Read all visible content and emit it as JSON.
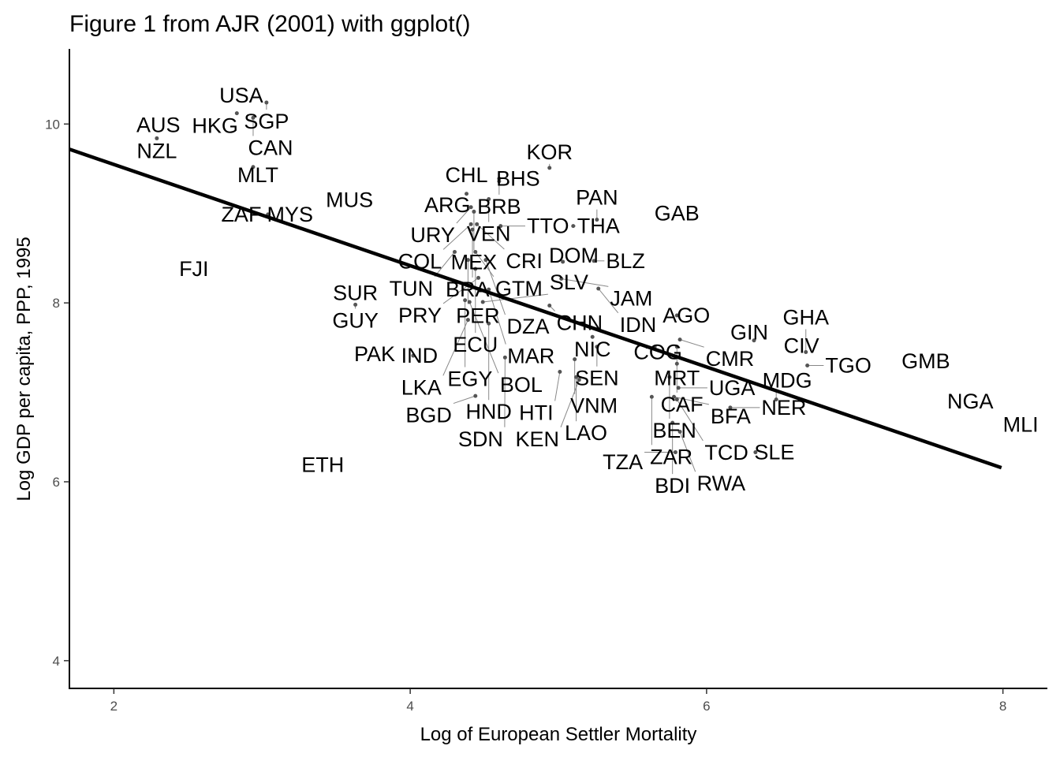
{
  "chart_data": {
    "type": "scatter",
    "title": "Figure 1 from AJR (2001) with ggplot()",
    "xlabel": "Log of European Settler Mortality",
    "ylabel": "Log GDP per capita, PPP, 1995",
    "xlim": [
      1.7,
      8.3
    ],
    "ylim": [
      3.69,
      10.84
    ],
    "xticks": [
      2,
      4,
      6,
      8
    ],
    "yticks": [
      4,
      6,
      8,
      10
    ],
    "grid": false,
    "marker": "text-label",
    "fit_line": {
      "intercept": 10.68,
      "slope": -0.566,
      "x_from": 1.7,
      "x_to": 7.99,
      "color": "#000000"
    },
    "points": [
      {
        "label": "USA",
        "x": 2.86,
        "y": 10.32
      },
      {
        "label": "SGP",
        "x": 3.03,
        "y": 10.24
      },
      {
        "label": "HKG",
        "x": 2.83,
        "y": 10.12
      },
      {
        "label": "CAN",
        "x": 2.94,
        "y": 10.07
      },
      {
        "label": "AUS",
        "x": 2.3,
        "y": 9.99
      },
      {
        "label": "NZL",
        "x": 2.29,
        "y": 9.84
      },
      {
        "label": "MLT",
        "x": 2.94,
        "y": 9.52
      },
      {
        "label": "MUS",
        "x": 3.59,
        "y": 9.15
      },
      {
        "label": "ZAF",
        "x": 2.86,
        "y": 8.99
      },
      {
        "label": "MYS",
        "x": 3.04,
        "y": 8.99
      },
      {
        "label": "FJI",
        "x": 2.54,
        "y": 8.38
      },
      {
        "label": "SUR",
        "x": 3.63,
        "y": 8.11
      },
      {
        "label": "GUY",
        "x": 3.63,
        "y": 7.98
      },
      {
        "label": "PAK",
        "x": 3.76,
        "y": 7.43
      },
      {
        "label": "IND",
        "x": 4.02,
        "y": 7.41
      },
      {
        "label": "ETH",
        "x": 3.41,
        "y": 6.19
      },
      {
        "label": "CHL",
        "x": 4.38,
        "y": 9.43
      },
      {
        "label": "BHS",
        "x": 4.6,
        "y": 9.39
      },
      {
        "label": "BRB",
        "x": 4.6,
        "y": 9.36
      },
      {
        "label": "KOR",
        "x": 4.94,
        "y": 9.51
      },
      {
        "label": "ARG",
        "x": 4.38,
        "y": 9.22
      },
      {
        "label": "VEN",
        "x": 4.53,
        "y": 9.16
      },
      {
        "label": "URY",
        "x": 4.41,
        "y": 9.07
      },
      {
        "label": "MEX",
        "x": 4.43,
        "y": 9.02
      },
      {
        "label": "COL",
        "x": 4.41,
        "y": 8.88
      },
      {
        "label": "CRI",
        "x": 4.45,
        "y": 8.88
      },
      {
        "label": "TTO",
        "x": 4.61,
        "y": 8.86
      },
      {
        "label": "BRA",
        "x": 4.42,
        "y": 8.82
      },
      {
        "label": "THA",
        "x": 5.1,
        "y": 8.86
      },
      {
        "label": "PAN",
        "x": 5.26,
        "y": 8.93
      },
      {
        "label": "GAB",
        "x": 5.8,
        "y": 9.0
      },
      {
        "label": "TUN",
        "x": 4.3,
        "y": 8.57
      },
      {
        "label": "GTM",
        "x": 4.44,
        "y": 8.57
      },
      {
        "label": "PER",
        "x": 4.39,
        "y": 8.48
      },
      {
        "label": "DZA",
        "x": 4.51,
        "y": 8.48
      },
      {
        "label": "ECU",
        "x": 4.44,
        "y": 8.38
      },
      {
        "label": "PRY",
        "x": 4.46,
        "y": 8.28
      },
      {
        "label": "MAR",
        "x": 4.53,
        "y": 8.15
      },
      {
        "label": "EGY",
        "x": 4.37,
        "y": 8.03
      },
      {
        "label": "BOL",
        "x": 4.4,
        "y": 8.01
      },
      {
        "label": "SLV",
        "x": 4.49,
        "y": 8.01
      },
      {
        "label": "LKA",
        "x": 4.39,
        "y": 7.81
      },
      {
        "label": "HND",
        "x": 4.53,
        "y": 7.77
      },
      {
        "label": "CHN",
        "x": 4.94,
        "y": 7.97
      },
      {
        "label": "DOM",
        "x": 5.03,
        "y": 8.46
      },
      {
        "label": "BLZ",
        "x": 5.24,
        "y": 8.47
      },
      {
        "label": "JAM",
        "x": 5.02,
        "y": 8.27
      },
      {
        "label": "IDN",
        "x": 5.27,
        "y": 8.16
      },
      {
        "label": "AGO",
        "x": 5.8,
        "y": 7.86
      },
      {
        "label": "NIC",
        "x": 5.23,
        "y": 7.62
      },
      {
        "label": "SEN",
        "x": 5.26,
        "y": 7.51
      },
      {
        "label": "COG",
        "x": 5.65,
        "y": 7.51
      },
      {
        "label": "MRT",
        "x": 5.8,
        "y": 7.51
      },
      {
        "label": "CMR",
        "x": 5.82,
        "y": 7.59
      },
      {
        "label": "VNM",
        "x": 5.11,
        "y": 7.37
      },
      {
        "label": "HTI",
        "x": 5.01,
        "y": 7.23
      },
      {
        "label": "LAO",
        "x": 5.12,
        "y": 7.17
      },
      {
        "label": "KEN",
        "x": 5.14,
        "y": 7.14
      },
      {
        "label": "CAF",
        "x": 5.8,
        "y": 7.32
      },
      {
        "label": "BEN",
        "x": 5.75,
        "y": 7.17
      },
      {
        "label": "UGA",
        "x": 5.81,
        "y": 7.05
      },
      {
        "label": "ZAR",
        "x": 5.63,
        "y": 6.95
      },
      {
        "label": "BFA",
        "x": 5.78,
        "y": 6.95
      },
      {
        "label": "TCD",
        "x": 5.8,
        "y": 6.92
      },
      {
        "label": "BDI",
        "x": 5.77,
        "y": 6.66
      },
      {
        "label": "RWA",
        "x": 5.82,
        "y": 6.56
      },
      {
        "label": "TZA",
        "x": 5.79,
        "y": 6.33
      },
      {
        "label": "NER",
        "x": 6.16,
        "y": 6.83
      },
      {
        "label": "MDG",
        "x": 6.47,
        "y": 6.92
      },
      {
        "label": "SLE",
        "x": 6.33,
        "y": 6.33
      },
      {
        "label": "GIN",
        "x": 6.32,
        "y": 7.58
      },
      {
        "label": "CIV",
        "x": 6.64,
        "y": 7.52
      },
      {
        "label": "GHA",
        "x": 6.67,
        "y": 7.45
      },
      {
        "label": "TGO",
        "x": 6.68,
        "y": 7.3
      },
      {
        "label": "GMB",
        "x": 7.48,
        "y": 7.35
      },
      {
        "label": "NGA",
        "x": 7.78,
        "y": 6.9
      },
      {
        "label": "MLI",
        "x": 8.12,
        "y": 6.64
      },
      {
        "label": "SDN",
        "x": 4.64,
        "y": 7.39
      },
      {
        "label": "BGD",
        "x": 4.44,
        "y": 6.96
      }
    ]
  }
}
